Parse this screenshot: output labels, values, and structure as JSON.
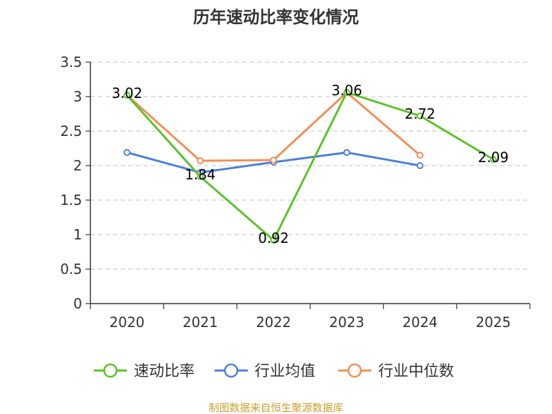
{
  "chart_data": {
    "type": "line",
    "title": "历年速动比率变化情况",
    "categories": [
      "2020",
      "2021",
      "2022",
      "2023",
      "2024",
      "2025"
    ],
    "ylim": [
      0,
      3.5
    ],
    "yticks": [
      "0",
      "0.5",
      "1",
      "1.5",
      "2",
      "2.5",
      "3",
      "3.5"
    ],
    "grid": true,
    "legend_position": "bottom",
    "series": [
      {
        "name": "速动比率",
        "color": "#5ac126",
        "values": [
          3.02,
          1.84,
          0.92,
          3.06,
          2.72,
          2.09
        ],
        "labels": [
          "3.02",
          "1.84",
          "0.92",
          "3.06",
          "2.72",
          "2.09"
        ]
      },
      {
        "name": "行业均值",
        "color": "#4a7fd6",
        "values": [
          2.19,
          1.9,
          2.05,
          2.19,
          2.0,
          null
        ]
      },
      {
        "name": "行业中位数",
        "color": "#f58d55",
        "values": [
          3.02,
          2.07,
          2.08,
          3.06,
          2.15,
          null
        ]
      }
    ]
  },
  "source": "制图数据来自恒生聚源数据库"
}
